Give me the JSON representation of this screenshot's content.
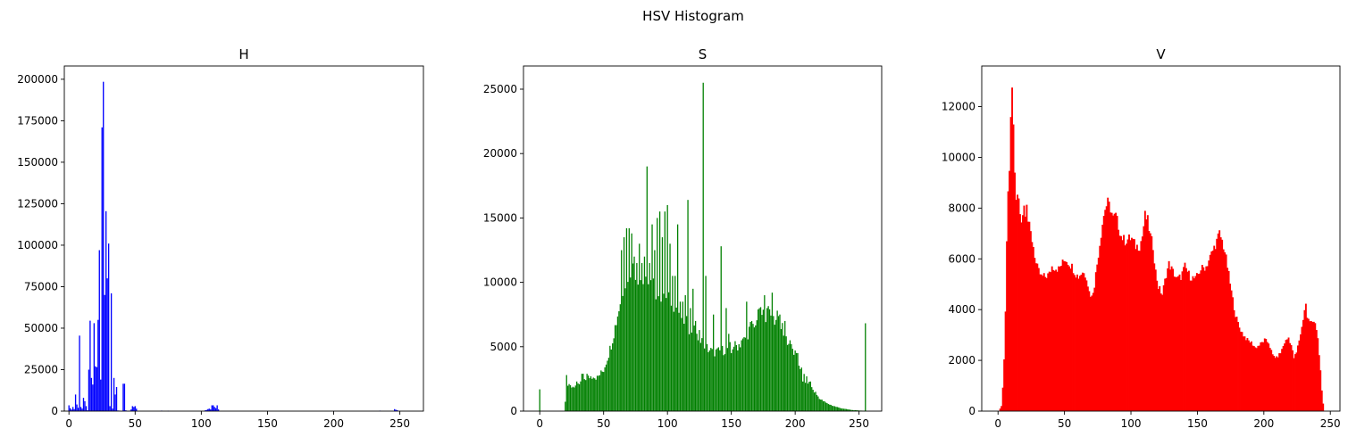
{
  "suptitle": "HSV Histogram",
  "chart_data": [
    {
      "type": "bar",
      "title": "H",
      "color": "#0000ff",
      "xlim": [
        -3.5,
        267.8
      ],
      "ylim": [
        0,
        208000
      ],
      "xticks": [
        0,
        50,
        100,
        150,
        200,
        250
      ],
      "yticks": [
        0,
        25000,
        50000,
        75000,
        100000,
        125000,
        150000,
        175000,
        200000
      ],
      "bins": [
        [
          0,
          3500
        ],
        [
          1,
          1800
        ],
        [
          2,
          900
        ],
        [
          3,
          2500
        ],
        [
          4,
          1200
        ],
        [
          5,
          10000
        ],
        [
          6,
          4000
        ],
        [
          7,
          2000
        ],
        [
          8,
          45500
        ],
        [
          9,
          2500
        ],
        [
          10,
          1500
        ],
        [
          11,
          8000
        ],
        [
          12,
          6000
        ],
        [
          13,
          3000
        ],
        [
          14,
          500
        ],
        [
          15,
          25000
        ],
        [
          16,
          54500
        ],
        [
          17,
          20000
        ],
        [
          18,
          16000
        ],
        [
          19,
          53000
        ],
        [
          20,
          27000
        ],
        [
          21,
          26500
        ],
        [
          22,
          55000
        ],
        [
          23,
          97000
        ],
        [
          24,
          19000
        ],
        [
          25,
          171000
        ],
        [
          26,
          198500
        ],
        [
          27,
          70000
        ],
        [
          28,
          120500
        ],
        [
          29,
          80000
        ],
        [
          30,
          101000
        ],
        [
          31,
          3000
        ],
        [
          32,
          71000
        ],
        [
          33,
          1500
        ],
        [
          34,
          20000
        ],
        [
          35,
          10000
        ],
        [
          36,
          14500
        ],
        [
          37,
          400
        ],
        [
          38,
          300
        ],
        [
          39,
          200
        ],
        [
          40,
          100
        ],
        [
          41,
          16500
        ],
        [
          42,
          16500
        ],
        [
          43,
          500
        ],
        [
          44,
          200
        ],
        [
          45,
          100
        ],
        [
          46,
          300
        ],
        [
          47,
          1000
        ],
        [
          48,
          3000
        ],
        [
          49,
          2500
        ],
        [
          50,
          3000
        ],
        [
          51,
          1500
        ],
        [
          70,
          300
        ],
        [
          75,
          200
        ],
        [
          103,
          500
        ],
        [
          104,
          700
        ],
        [
          105,
          1200
        ],
        [
          106,
          1500
        ],
        [
          107,
          1000
        ],
        [
          108,
          3500
        ],
        [
          109,
          3500
        ],
        [
          110,
          2500
        ],
        [
          111,
          1800
        ],
        [
          112,
          3500
        ],
        [
          113,
          1000
        ],
        [
          150,
          100
        ],
        [
          200,
          100
        ],
        [
          235,
          300
        ],
        [
          246,
          1200
        ],
        [
          247,
          800
        ],
        [
          248,
          600
        ]
      ]
    },
    {
      "type": "bar",
      "title": "S",
      "color": "#008000",
      "xlim": [
        -12.75,
        267.75
      ],
      "ylim": [
        0,
        26800
      ],
      "xticks": [
        0,
        50,
        100,
        150,
        200,
        250
      ],
      "yticks": [
        0,
        5000,
        10000,
        15000,
        20000,
        25000
      ],
      "anchors": [
        [
          0,
          1800
        ],
        [
          1,
          0
        ],
        [
          19,
          0
        ],
        [
          20,
          800
        ],
        [
          22,
          2000
        ],
        [
          25,
          1900
        ],
        [
          30,
          2000
        ],
        [
          35,
          2500
        ],
        [
          40,
          2700
        ],
        [
          45,
          2600
        ],
        [
          50,
          3200
        ],
        [
          55,
          4800
        ],
        [
          60,
          7000
        ],
        [
          65,
          9500
        ],
        [
          70,
          11000
        ],
        [
          75,
          11000
        ],
        [
          80,
          10000
        ],
        [
          85,
          9800
        ],
        [
          90,
          9500
        ],
        [
          95,
          9200
        ],
        [
          100,
          9000
        ],
        [
          105,
          8400
        ],
        [
          110,
          7500
        ],
        [
          115,
          6800
        ],
        [
          120,
          6200
        ],
        [
          125,
          6000
        ],
        [
          130,
          5000
        ],
        [
          135,
          4600
        ],
        [
          140,
          4600
        ],
        [
          145,
          4800
        ],
        [
          150,
          5000
        ],
        [
          155,
          5100
        ],
        [
          160,
          5500
        ],
        [
          165,
          6500
        ],
        [
          170,
          7200
        ],
        [
          175,
          7600
        ],
        [
          180,
          7600
        ],
        [
          185,
          7000
        ],
        [
          190,
          6500
        ],
        [
          195,
          5200
        ],
        [
          200,
          4400
        ],
        [
          205,
          3200
        ],
        [
          210,
          2300
        ],
        [
          215,
          1500
        ],
        [
          220,
          900
        ],
        [
          225,
          600
        ],
        [
          230,
          400
        ],
        [
          235,
          250
        ],
        [
          240,
          150
        ],
        [
          245,
          80
        ],
        [
          250,
          50
        ],
        [
          254,
          30
        ],
        [
          255,
          6700
        ]
      ],
      "spikes": [
        [
          21,
          2800
        ],
        [
          23,
          2100
        ],
        [
          29,
          2300
        ],
        [
          33,
          2900
        ],
        [
          34,
          2900
        ],
        [
          37,
          2900
        ],
        [
          42,
          2600
        ],
        [
          64,
          12500
        ],
        [
          66,
          13500
        ],
        [
          68,
          14200
        ],
        [
          70,
          14200
        ],
        [
          72,
          13800
        ],
        [
          74,
          12000
        ],
        [
          76,
          11500
        ],
        [
          78,
          13000
        ],
        [
          80,
          11500
        ],
        [
          82,
          12000
        ],
        [
          84,
          19000
        ],
        [
          86,
          11500
        ],
        [
          88,
          14500
        ],
        [
          90,
          12500
        ],
        [
          92,
          15000
        ],
        [
          94,
          15500
        ],
        [
          96,
          13500
        ],
        [
          98,
          15500
        ],
        [
          100,
          16000
        ],
        [
          102,
          13000
        ],
        [
          104,
          10500
        ],
        [
          106,
          10500
        ],
        [
          108,
          14500
        ],
        [
          110,
          8500
        ],
        [
          112,
          8500
        ],
        [
          114,
          9000
        ],
        [
          116,
          16400
        ],
        [
          118,
          8000
        ],
        [
          120,
          9500
        ],
        [
          122,
          7000
        ],
        [
          124,
          5500
        ],
        [
          128,
          25500
        ],
        [
          130,
          10500
        ],
        [
          136,
          7500
        ],
        [
          142,
          12800
        ],
        [
          146,
          8000
        ],
        [
          148,
          6000
        ],
        [
          150,
          4500
        ],
        [
          152,
          5000
        ],
        [
          158,
          5500
        ],
        [
          162,
          8500
        ],
        [
          168,
          6500
        ],
        [
          172,
          8000
        ],
        [
          176,
          9000
        ],
        [
          178,
          8000
        ],
        [
          182,
          9200
        ],
        [
          186,
          7800
        ],
        [
          188,
          7500
        ],
        [
          192,
          7000
        ],
        [
          196,
          5500
        ],
        [
          202,
          4500
        ],
        [
          206,
          2300
        ],
        [
          208,
          2200
        ],
        [
          212,
          2300
        ],
        [
          216,
          1500
        ]
      ]
    },
    {
      "type": "area",
      "title": "V",
      "color": "#ff0000",
      "xlim": [
        -12.25,
        257.25
      ],
      "ylim": [
        0,
        13600
      ],
      "xticks": [
        0,
        50,
        100,
        150,
        200,
        250
      ],
      "yticks": [
        0,
        2000,
        4000,
        6000,
        8000,
        10000,
        12000
      ],
      "anchors": [
        [
          0,
          0
        ],
        [
          2,
          200
        ],
        [
          3,
          900
        ],
        [
          4,
          2000
        ],
        [
          5,
          4000
        ],
        [
          6,
          6500
        ],
        [
          7,
          8500
        ],
        [
          8,
          9500
        ],
        [
          9,
          11300
        ],
        [
          10,
          12800
        ],
        [
          11,
          11200
        ],
        [
          12,
          9500
        ],
        [
          13,
          8200
        ],
        [
          14,
          8500
        ],
        [
          15,
          8300
        ],
        [
          16,
          7800
        ],
        [
          17,
          7600
        ],
        [
          18,
          7800
        ],
        [
          19,
          8100
        ],
        [
          20,
          7900
        ],
        [
          21,
          8300
        ],
        [
          22,
          7500
        ],
        [
          24,
          7000
        ],
        [
          26,
          6500
        ],
        [
          28,
          5800
        ],
        [
          30,
          5500
        ],
        [
          32,
          5300
        ],
        [
          35,
          5300
        ],
        [
          38,
          5400
        ],
        [
          40,
          5700
        ],
        [
          45,
          5600
        ],
        [
          50,
          6000
        ],
        [
          55,
          5700
        ],
        [
          58,
          5400
        ],
        [
          60,
          5300
        ],
        [
          63,
          5500
        ],
        [
          66,
          5300
        ],
        [
          68,
          4700
        ],
        [
          70,
          4500
        ],
        [
          72,
          5000
        ],
        [
          75,
          6200
        ],
        [
          78,
          7400
        ],
        [
          80,
          8000
        ],
        [
          82,
          8200
        ],
        [
          84,
          8000
        ],
        [
          86,
          7600
        ],
        [
          88,
          7700
        ],
        [
          90,
          7300
        ],
        [
          92,
          6900
        ],
        [
          95,
          6700
        ],
        [
          98,
          6800
        ],
        [
          100,
          6800
        ],
        [
          103,
          6500
        ],
        [
          106,
          6500
        ],
        [
          108,
          6900
        ],
        [
          110,
          7700
        ],
        [
          112,
          7500
        ],
        [
          114,
          6900
        ],
        [
          116,
          6500
        ],
        [
          118,
          5500
        ],
        [
          120,
          4900
        ],
        [
          123,
          4600
        ],
        [
          126,
          5400
        ],
        [
          128,
          5800
        ],
        [
          131,
          5500
        ],
        [
          134,
          5200
        ],
        [
          137,
          5300
        ],
        [
          140,
          5700
        ],
        [
          144,
          5300
        ],
        [
          148,
          5200
        ],
        [
          152,
          5600
        ],
        [
          156,
          5700
        ],
        [
          160,
          6200
        ],
        [
          164,
          6700
        ],
        [
          166,
          7000
        ],
        [
          168,
          6700
        ],
        [
          170,
          6300
        ],
        [
          172,
          5700
        ],
        [
          175,
          4700
        ],
        [
          178,
          3800
        ],
        [
          181,
          3300
        ],
        [
          184,
          3000
        ],
        [
          187,
          2800
        ],
        [
          190,
          2700
        ],
        [
          193,
          2500
        ],
        [
          196,
          2600
        ],
        [
          200,
          2800
        ],
        [
          203,
          2700
        ],
        [
          206,
          2200
        ],
        [
          209,
          2100
        ],
        [
          212,
          2300
        ],
        [
          215,
          2700
        ],
        [
          218,
          2900
        ],
        [
          220,
          2600
        ],
        [
          222,
          2100
        ],
        [
          224,
          2300
        ],
        [
          226,
          2800
        ],
        [
          228,
          3300
        ],
        [
          230,
          4000
        ],
        [
          231,
          4200
        ],
        [
          232,
          3700
        ],
        [
          234,
          3500
        ],
        [
          236,
          3600
        ],
        [
          238,
          3500
        ],
        [
          240,
          2800
        ],
        [
          241,
          2200
        ],
        [
          242,
          1600
        ],
        [
          243,
          800
        ],
        [
          244,
          300
        ],
        [
          245,
          0
        ],
        [
          255,
          0
        ]
      ]
    }
  ]
}
